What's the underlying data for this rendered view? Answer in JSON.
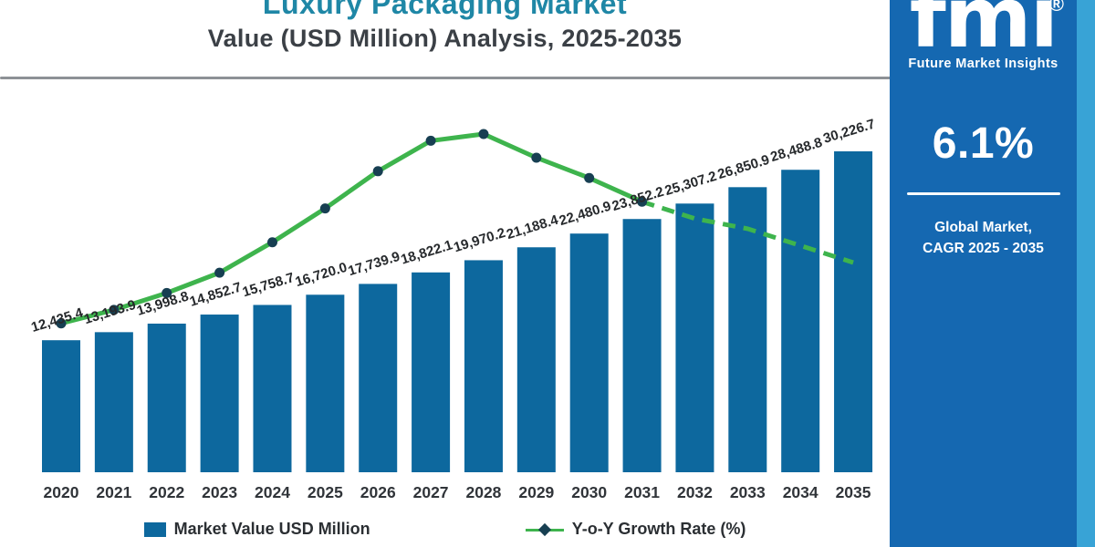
{
  "header": {
    "title": "Luxury Packaging Market",
    "subtitle": "Value (USD Million) Analysis, 2025-2035"
  },
  "chart_data": {
    "type": "bar+line",
    "title": "Luxury Packaging Market Value (USD Million) Analysis, 2025-2035",
    "xlabel": "",
    "ylabel": "",
    "grid": false,
    "legend_position": "bottom",
    "categories": [
      "2020",
      "2021",
      "2022",
      "2023",
      "2024",
      "2025",
      "2026",
      "2027",
      "2028",
      "2029",
      "2030",
      "2031",
      "2032",
      "2033",
      "2034",
      "2035"
    ],
    "series": [
      {
        "name": "Market Value USD Million",
        "type": "bar",
        "color": "#0d689e",
        "values": [
          12435.4,
          13193.9,
          13998.8,
          14852.7,
          15758.7,
          16720.0,
          17739.9,
          18822.1,
          19970.2,
          21188.4,
          22480.9,
          23852.2,
          25307.2,
          26850.9,
          28488.8,
          30226.7
        ],
        "labels": [
          "12,435.4",
          "13,193.9",
          "13,998.8",
          "14,852.7",
          "15,758.7",
          "16,720.0",
          "17,739.9",
          "18,822.1",
          "19,970.2",
          "21,188.4",
          "22,480.9",
          "23,852.2",
          "25,307.2",
          "26,850.9",
          "28,488.8",
          "30,226.7"
        ]
      },
      {
        "name": "Y-o-Y Growth Rate (%)",
        "type": "line",
        "color": "#3eb44d",
        "marker_color": "#173f52",
        "axis": "unlabeled",
        "relative_heights_estimated": [
          0.44,
          0.48,
          0.53,
          0.59,
          0.68,
          0.78,
          0.89,
          0.98,
          1.0,
          0.93,
          0.87,
          0.8,
          0.75,
          0.72,
          0.67,
          0.62
        ],
        "dashed_from_index": 11
      }
    ]
  },
  "legend": {
    "items": [
      {
        "label": "Market Value USD Million"
      },
      {
        "label": "Y-o-Y Growth Rate (%)"
      }
    ]
  },
  "sidebar": {
    "logo_text": "fmi",
    "logo_registered": "®",
    "logo_subtext": "Future Market Insights",
    "stat_value": "6.1%",
    "caption_line1": "Global Market,",
    "caption_line2": "CAGR 2025 - 2035"
  },
  "colors": {
    "bar": "#0d689e",
    "line": "#3eb44d",
    "line_marker": "#173f52",
    "title": "#1f87a6",
    "sidebar_background": "#1568b1",
    "outer_strip": "#38a3d6"
  }
}
